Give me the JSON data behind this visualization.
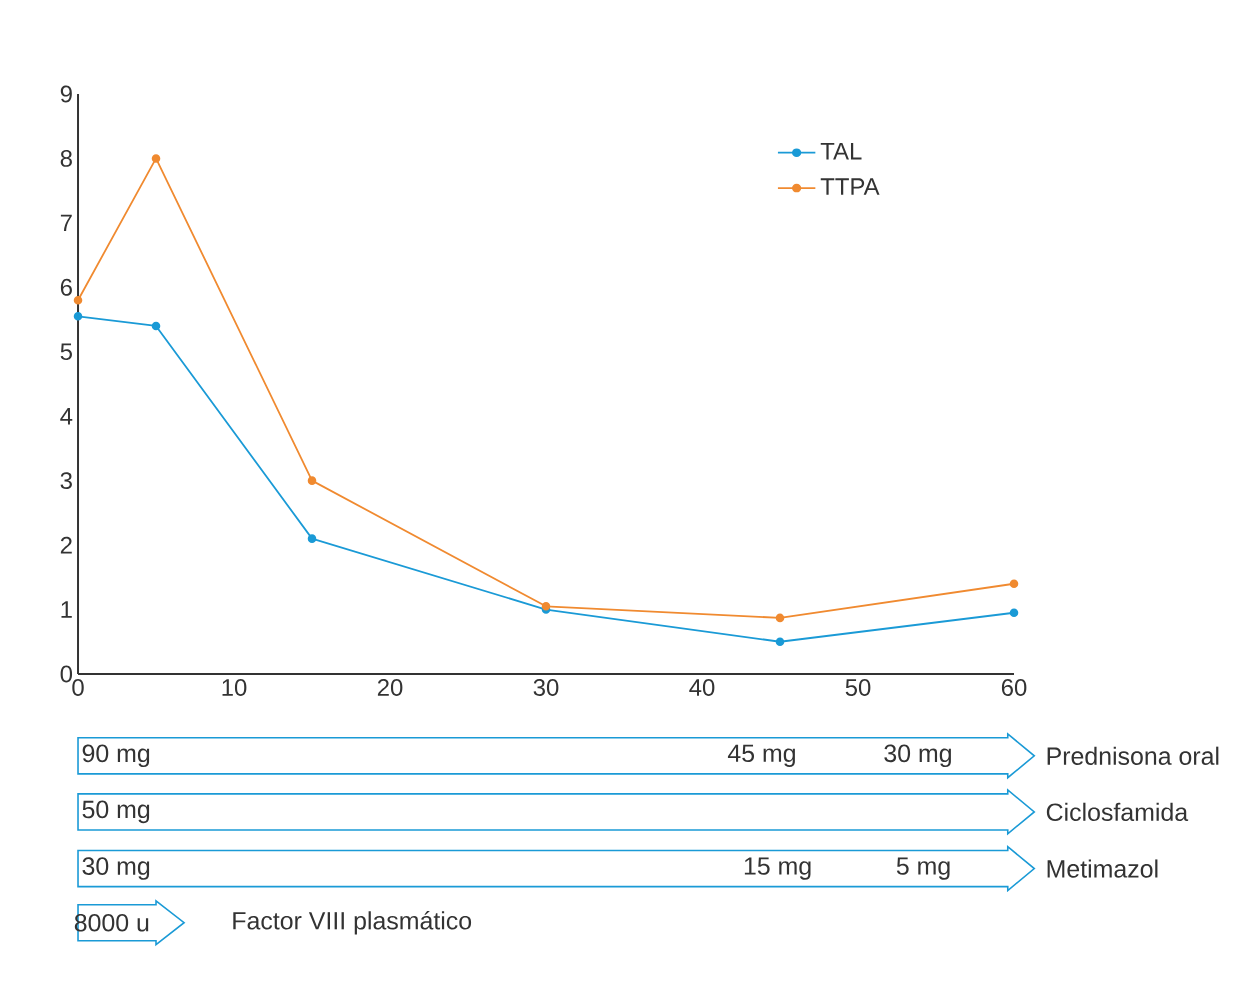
{
  "chart_data": {
    "type": "line",
    "x": [
      0,
      5,
      15,
      30,
      45,
      60
    ],
    "series": [
      {
        "name": "TAL",
        "color": "#1a9ad6",
        "values": [
          5.55,
          5.4,
          2.1,
          1.0,
          0.5,
          0.95
        ]
      },
      {
        "name": "TTPA",
        "color": "#f08a30",
        "values": [
          5.8,
          8,
          3,
          1.05,
          0.87,
          1.4
        ]
      }
    ],
    "xlim": [
      0,
      60
    ],
    "ylim": [
      0,
      9
    ],
    "xticks": [
      0,
      10,
      20,
      30,
      40,
      50,
      60
    ],
    "yticks": [
      0,
      1,
      2,
      3,
      4,
      5,
      6,
      7,
      8,
      9
    ],
    "grid": false,
    "legend": "top right",
    "marker": "circle",
    "line_style": "solid",
    "annotations": [
      "90 mg",
      "45 mg",
      "30 mg",
      "Prednisona oral",
      "50 mg",
      "Ciclosfamida",
      "30 mg",
      "15 mg",
      "5 mg",
      "Metimazol",
      "8000 u",
      "Factor VIII plasmático"
    ]
  }
}
